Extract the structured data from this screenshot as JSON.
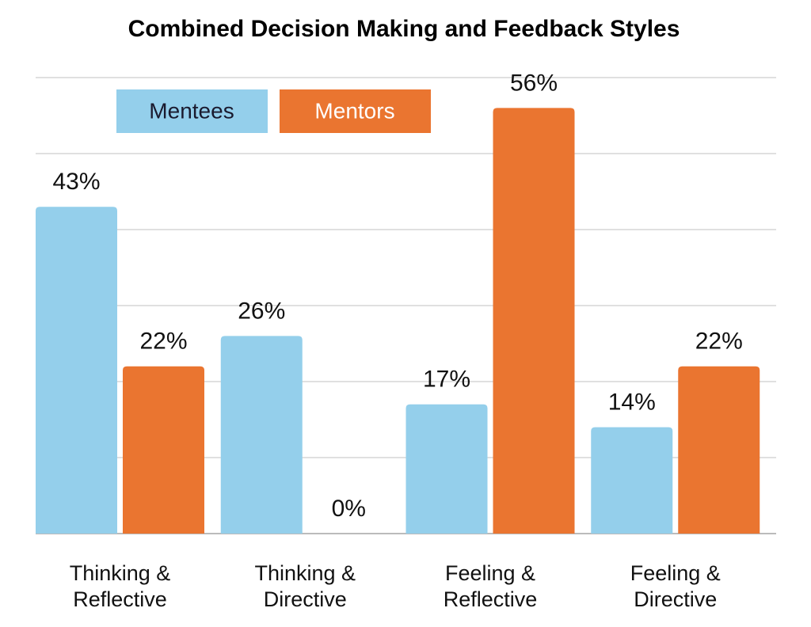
{
  "chart_data": {
    "type": "bar",
    "title": "Combined Decision Making and Feedback Styles",
    "categories": [
      "Thinking &\nReflective",
      "Thinking &\nDirective",
      "Feeling &\nReflective",
      "Feeling &\nDirective"
    ],
    "series": [
      {
        "name": "Mentees",
        "color": "#94cfeb",
        "values": [
          43,
          26,
          17,
          14
        ],
        "value_labels": [
          "43%",
          "26%",
          "17%",
          "14%"
        ]
      },
      {
        "name": "Mentors",
        "color": "#ea7530",
        "values": [
          22,
          0,
          56,
          22
        ],
        "value_labels": [
          "22%",
          "0%",
          "56%",
          "22%"
        ]
      }
    ],
    "ylim": [
      0,
      60
    ],
    "yticks": [
      0,
      10,
      20,
      30,
      40,
      50,
      60
    ],
    "grid": true
  }
}
